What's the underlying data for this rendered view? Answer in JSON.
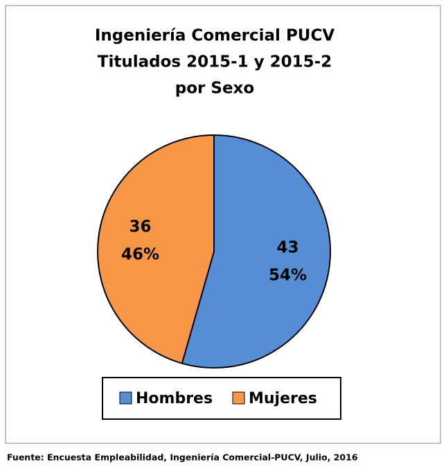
{
  "chart_data": {
    "type": "pie",
    "title": [
      "Ingeniería Comercial PUCV",
      "Titulados 2015-1 y 2015-2",
      "por Sexo"
    ],
    "categories": [
      "Hombres",
      "Mujeres"
    ],
    "values": [
      43,
      36
    ],
    "percentages": [
      54,
      46
    ],
    "percentage_labels": [
      "54%",
      "46%"
    ],
    "colors": [
      "#558ed5",
      "#f79646"
    ],
    "legend": "bottom",
    "source": "Fuente: Encuesta Empleabilidad, Ingeniería Comercial-PUCV, Julio, 2016"
  }
}
